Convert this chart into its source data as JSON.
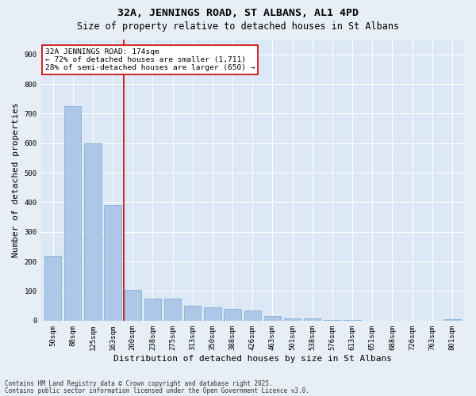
{
  "title1": "32A, JENNINGS ROAD, ST ALBANS, AL1 4PD",
  "title2": "Size of property relative to detached houses in St Albans",
  "xlabel": "Distribution of detached houses by size in St Albans",
  "ylabel": "Number of detached properties",
  "footer1": "Contains HM Land Registry data © Crown copyright and database right 2025.",
  "footer2": "Contains public sector information licensed under the Open Government Licence v3.0.",
  "categories": [
    "50sqm",
    "88sqm",
    "125sqm",
    "163sqm",
    "200sqm",
    "238sqm",
    "275sqm",
    "313sqm",
    "350sqm",
    "388sqm",
    "426sqm",
    "463sqm",
    "501sqm",
    "538sqm",
    "576sqm",
    "613sqm",
    "651sqm",
    "688sqm",
    "726sqm",
    "763sqm",
    "801sqm"
  ],
  "values": [
    220,
    725,
    600,
    390,
    105,
    75,
    75,
    50,
    45,
    40,
    35,
    15,
    8,
    8,
    3,
    3,
    0,
    0,
    0,
    0,
    5
  ],
  "bar_color": "#aec6e8",
  "bar_edge_color": "#7aaad0",
  "vline_x_index": 3.55,
  "vline_color": "#cc0000",
  "annotation_text": "32A JENNINGS ROAD: 174sqm\n← 72% of detached houses are smaller (1,711)\n28% of semi-detached houses are larger (650) →",
  "annotation_box_color": "#cc0000",
  "annotation_text_color": "#000000",
  "ylim": [
    0,
    950
  ],
  "yticks": [
    0,
    100,
    200,
    300,
    400,
    500,
    600,
    700,
    800,
    900
  ],
  "bg_color": "#e8eef5",
  "plot_bg_color": "#dce8f5",
  "grid_color": "#ffffff",
  "title_fontsize": 9.5,
  "subtitle_fontsize": 8.5,
  "tick_fontsize": 6.5,
  "label_fontsize": 8,
  "footer_fontsize": 5.5,
  "annot_fontsize": 6.8
}
